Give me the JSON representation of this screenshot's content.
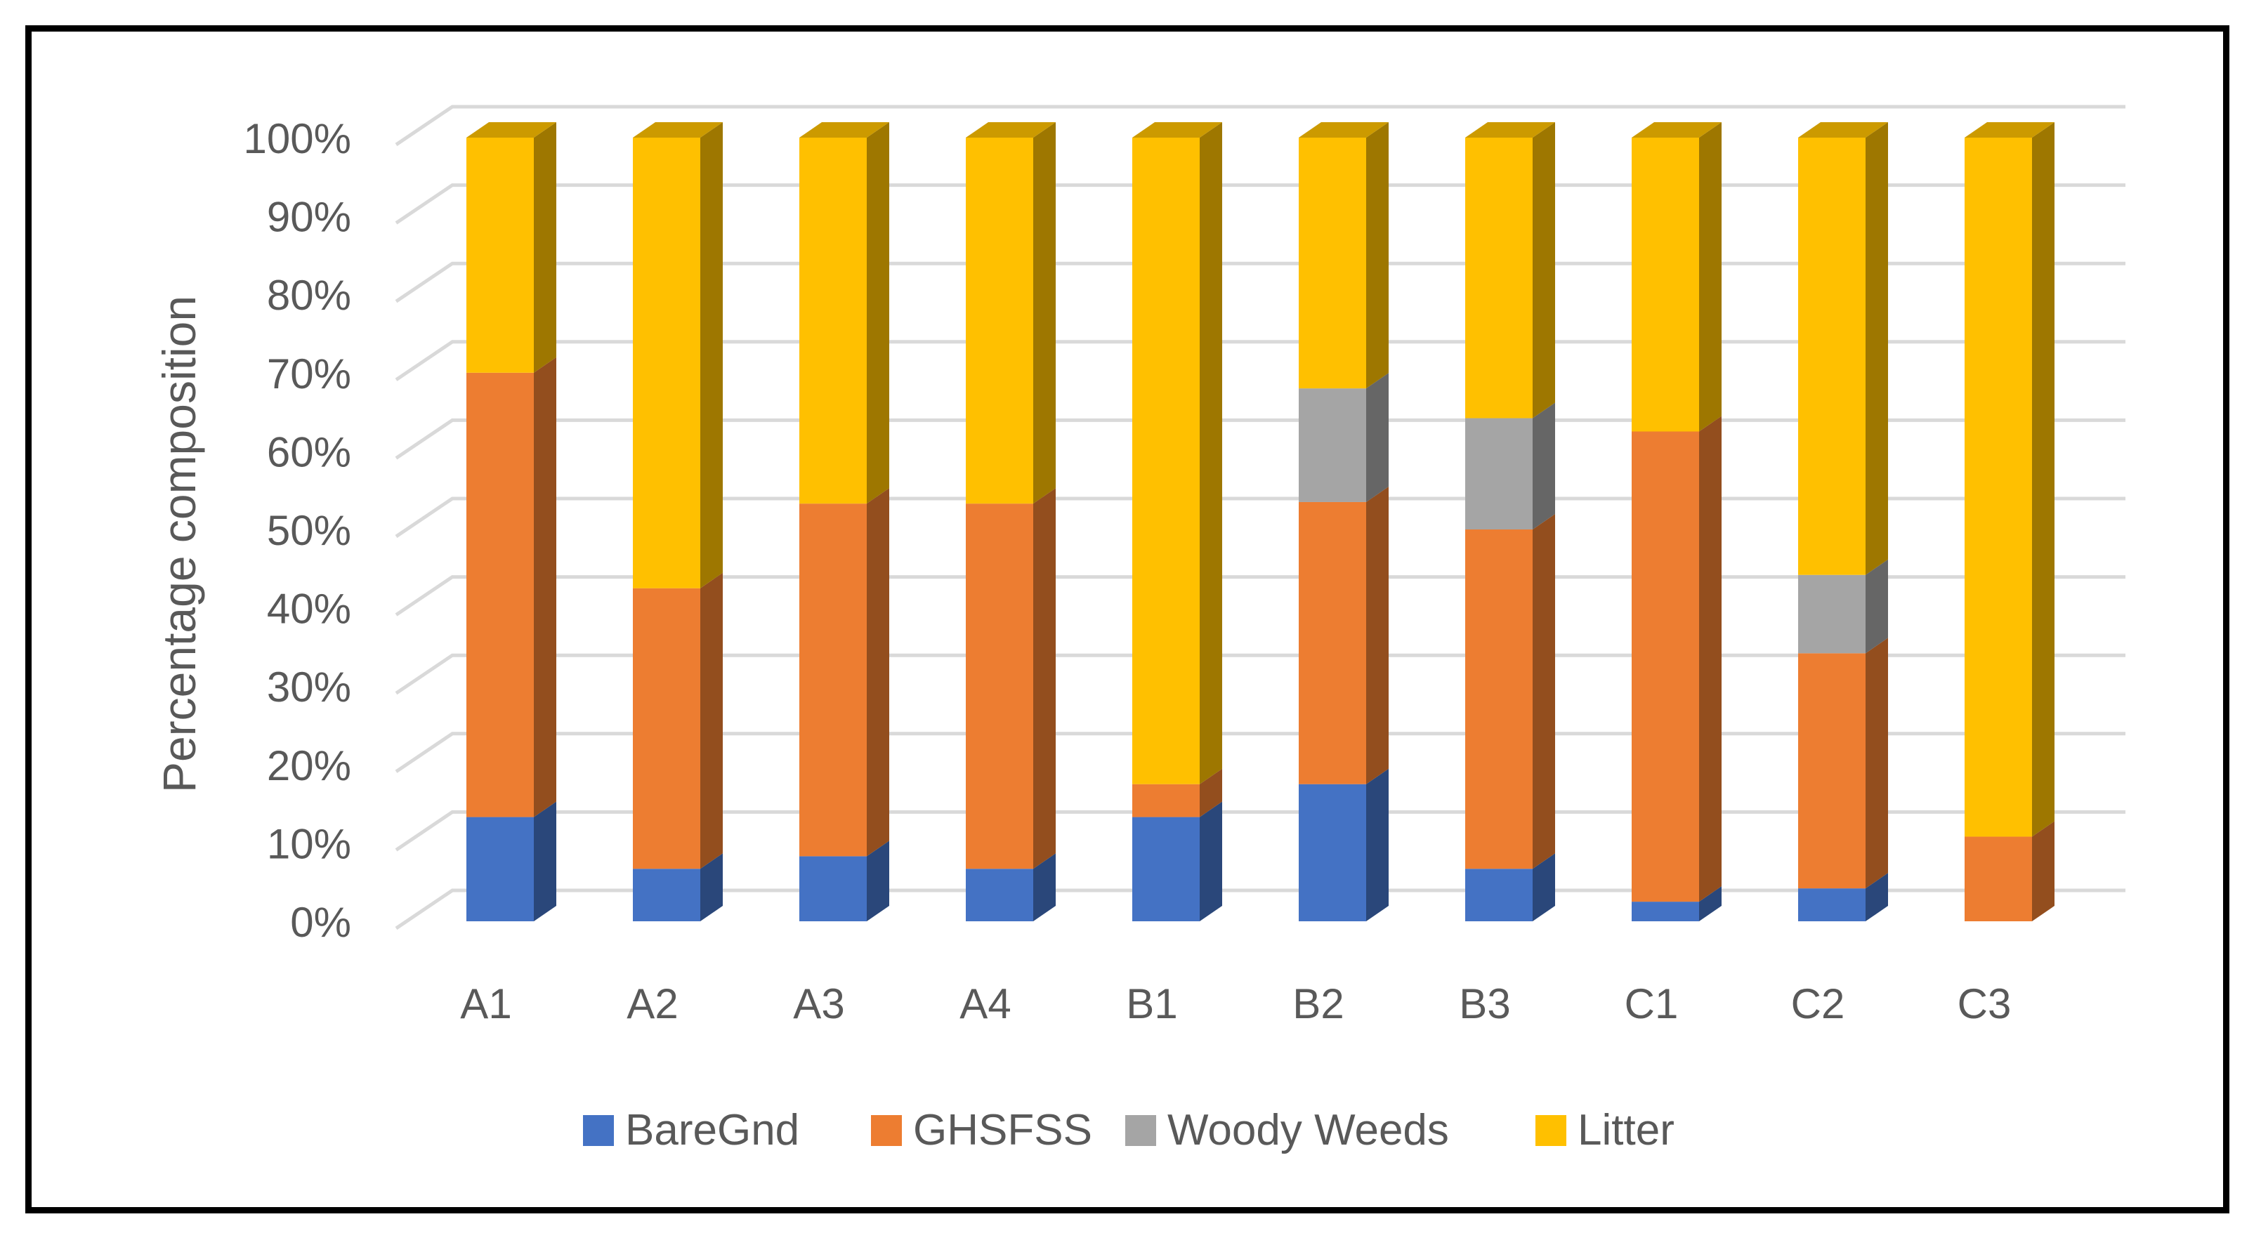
{
  "chart_data": {
    "type": "bar",
    "stacked": true,
    "style": "3d-stacked-percent",
    "title": "",
    "xlabel": "",
    "ylabel": "Percentage composition",
    "ylim": [
      0,
      100
    ],
    "yticks": [
      "0%",
      "10%",
      "20%",
      "30%",
      "40%",
      "50%",
      "60%",
      "70%",
      "80%",
      "90%",
      "100%"
    ],
    "grid": true,
    "legend_position": "bottom",
    "categories": [
      "A1",
      "A2",
      "A3",
      "A4",
      "B1",
      "B2",
      "B3",
      "C1",
      "C2",
      "C3"
    ],
    "series": [
      {
        "name": "BareGnd",
        "color": "#4472C4",
        "values": [
          13.3,
          6.7,
          8.3,
          6.7,
          13.3,
          17.5,
          6.7,
          2.5,
          4.2,
          0
        ]
      },
      {
        "name": "GHSFSS",
        "color": "#ED7D31",
        "values": [
          56.7,
          35.8,
          45.0,
          46.6,
          4.2,
          36.0,
          43.3,
          60.0,
          30.0,
          10.8
        ]
      },
      {
        "name": "Woody Weeds",
        "color": "#A5A5A5",
        "values": [
          0,
          0,
          0,
          0,
          0,
          14.5,
          14.2,
          0,
          10.0,
          0
        ]
      },
      {
        "name": "Litter",
        "color": "#FFC000",
        "values": [
          30.0,
          57.5,
          46.7,
          46.7,
          82.5,
          32.0,
          35.8,
          37.5,
          55.8,
          89.2
        ]
      }
    ]
  }
}
